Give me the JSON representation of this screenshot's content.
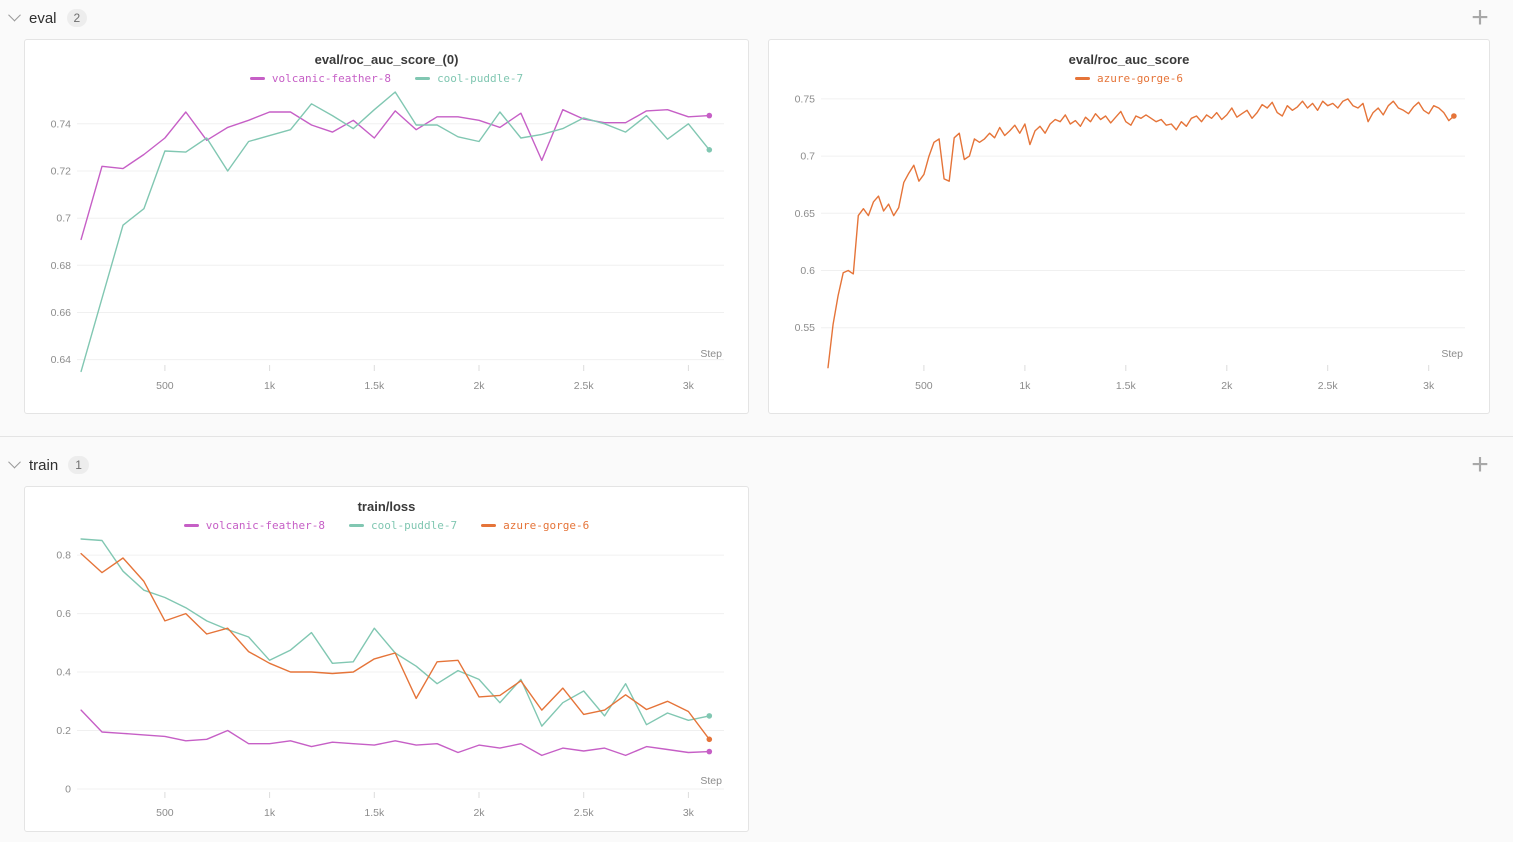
{
  "sections": [
    {
      "label": "eval",
      "count": "2"
    },
    {
      "label": "train",
      "count": "1"
    }
  ],
  "icons": {
    "chevron-down-icon": "v",
    "plus-icon": "+"
  },
  "ui_colors": {
    "background": "#fafafa",
    "card_border": "#e4e4e4",
    "grid_line": "#f0f0f0",
    "tick_text": "#8c8c8c",
    "run_magenta": "#c65fc6",
    "run_teal": "#81c7b2",
    "run_orange": "#e57439"
  },
  "chart_data": [
    {
      "type": "line",
      "title": "eval/roc_auc_score_(0)",
      "xlabel": "Step",
      "ylabel": "",
      "legend_position": "top",
      "grid": "horizontal",
      "xlim": [
        90,
        3170
      ],
      "ylim": [
        0.639,
        0.7535
      ],
      "x_ticks": {
        "values": [
          500,
          1000,
          1500,
          2000,
          2500,
          3000
        ],
        "labels": [
          "500",
          "1k",
          "1.5k",
          "2k",
          "2.5k",
          "3k"
        ]
      },
      "y_ticks": {
        "values": [
          0.64,
          0.66,
          0.68,
          0.7,
          0.72,
          0.74
        ],
        "labels": [
          "0.64",
          "0.66",
          "0.68",
          "0.7",
          "0.72",
          "0.74"
        ]
      },
      "series": [
        {
          "name": "volcanic-feather-8",
          "color": "#c65fc6",
          "x0": 100,
          "dx": 100,
          "end_dot": true,
          "values": [
            0.691,
            0.722,
            0.721,
            0.727,
            0.734,
            0.745,
            0.733,
            0.7385,
            0.7415,
            0.745,
            0.745,
            0.7395,
            0.7365,
            0.7415,
            0.734,
            0.7455,
            0.7375,
            0.743,
            0.743,
            0.7415,
            0.7385,
            0.7445,
            0.7245,
            0.746,
            0.742,
            0.7405,
            0.7405,
            0.7455,
            0.746,
            0.743,
            0.7435
          ]
        },
        {
          "name": "cool-puddle-7",
          "color": "#81c7b2",
          "x0": 100,
          "dx": 100,
          "end_dot": true,
          "values": [
            0.635,
            0.666,
            0.697,
            0.704,
            0.7285,
            0.728,
            0.734,
            0.72,
            0.7325,
            0.735,
            0.7375,
            0.7485,
            0.7435,
            0.738,
            0.746,
            0.7535,
            0.7395,
            0.7395,
            0.7345,
            0.7325,
            0.745,
            0.734,
            0.7355,
            0.738,
            0.7425,
            0.74,
            0.7365,
            0.7435,
            0.7335,
            0.74,
            0.729
          ]
        }
      ]
    },
    {
      "type": "line",
      "title": "eval/roc_auc_score",
      "xlabel": "Step",
      "ylabel": "",
      "legend_position": "top",
      "grid": "horizontal",
      "xlim": [
        0,
        3180
      ],
      "ylim": [
        0.52,
        0.756
      ],
      "x_ticks": {
        "values": [
          500,
          1000,
          1500,
          2000,
          2500,
          3000
        ],
        "labels": [
          "500",
          "1k",
          "1.5k",
          "2k",
          "2.5k",
          "3k"
        ]
      },
      "y_ticks": {
        "values": [
          0.55,
          0.6,
          0.65,
          0.7,
          0.75
        ],
        "labels": [
          "0.55",
          "0.6",
          "0.65",
          "0.7",
          "0.75"
        ]
      },
      "series": [
        {
          "name": "azure-gorge-6",
          "color": "#e57439",
          "x0": 25,
          "dx": 25,
          "end_dot": true,
          "values": [
            0.515,
            0.553,
            0.578,
            0.598,
            0.6,
            0.597,
            0.648,
            0.654,
            0.648,
            0.66,
            0.665,
            0.652,
            0.658,
            0.648,
            0.655,
            0.677,
            0.685,
            0.692,
            0.678,
            0.684,
            0.7,
            0.712,
            0.715,
            0.68,
            0.678,
            0.716,
            0.72,
            0.697,
            0.7,
            0.715,
            0.712,
            0.715,
            0.72,
            0.716,
            0.725,
            0.718,
            0.722,
            0.727,
            0.72,
            0.728,
            0.71,
            0.722,
            0.726,
            0.72,
            0.728,
            0.732,
            0.73,
            0.736,
            0.728,
            0.731,
            0.726,
            0.734,
            0.73,
            0.737,
            0.732,
            0.735,
            0.729,
            0.734,
            0.739,
            0.73,
            0.727,
            0.735,
            0.733,
            0.736,
            0.733,
            0.73,
            0.732,
            0.727,
            0.728,
            0.723,
            0.73,
            0.726,
            0.733,
            0.735,
            0.73,
            0.736,
            0.733,
            0.738,
            0.732,
            0.736,
            0.742,
            0.734,
            0.737,
            0.74,
            0.733,
            0.738,
            0.745,
            0.742,
            0.747,
            0.738,
            0.735,
            0.744,
            0.74,
            0.743,
            0.748,
            0.742,
            0.746,
            0.74,
            0.748,
            0.744,
            0.746,
            0.742,
            0.748,
            0.75,
            0.744,
            0.742,
            0.746,
            0.73,
            0.738,
            0.742,
            0.736,
            0.744,
            0.748,
            0.742,
            0.74,
            0.737,
            0.743,
            0.747,
            0.74,
            0.737,
            0.744,
            0.742,
            0.738,
            0.731,
            0.735
          ]
        }
      ]
    },
    {
      "type": "line",
      "title": "train/loss",
      "xlabel": "Step",
      "ylabel": "",
      "legend_position": "top",
      "grid": "horizontal",
      "xlim": [
        90,
        3170
      ],
      "ylim": [
        0,
        0.855
      ],
      "x_ticks": {
        "values": [
          500,
          1000,
          1500,
          2000,
          2500,
          3000
        ],
        "labels": [
          "500",
          "1k",
          "1.5k",
          "2k",
          "2.5k",
          "3k"
        ]
      },
      "y_ticks": {
        "values": [
          0,
          0.2,
          0.4,
          0.6,
          0.8
        ],
        "labels": [
          "0",
          "0.2",
          "0.4",
          "0.6",
          "0.8"
        ]
      },
      "series": [
        {
          "name": "volcanic-feather-8",
          "color": "#c65fc6",
          "x0": 100,
          "dx": 100,
          "end_dot": true,
          "values": [
            0.27,
            0.195,
            0.19,
            0.185,
            0.18,
            0.165,
            0.17,
            0.2,
            0.155,
            0.155,
            0.165,
            0.145,
            0.16,
            0.155,
            0.15,
            0.165,
            0.15,
            0.155,
            0.125,
            0.15,
            0.14,
            0.155,
            0.115,
            0.14,
            0.13,
            0.14,
            0.115,
            0.145,
            0.135,
            0.125,
            0.128
          ]
        },
        {
          "name": "cool-puddle-7",
          "color": "#81c7b2",
          "x0": 100,
          "dx": 100,
          "end_dot": true,
          "values": [
            0.855,
            0.85,
            0.745,
            0.68,
            0.655,
            0.62,
            0.575,
            0.545,
            0.52,
            0.44,
            0.475,
            0.535,
            0.43,
            0.435,
            0.55,
            0.465,
            0.42,
            0.36,
            0.405,
            0.375,
            0.295,
            0.375,
            0.215,
            0.295,
            0.335,
            0.25,
            0.36,
            0.22,
            0.26,
            0.235,
            0.25
          ]
        },
        {
          "name": "azure-gorge-6",
          "color": "#e57439",
          "x0": 100,
          "dx": 100,
          "end_dot": true,
          "values": [
            0.805,
            0.74,
            0.79,
            0.71,
            0.575,
            0.6,
            0.53,
            0.55,
            0.47,
            0.43,
            0.4,
            0.4,
            0.395,
            0.4,
            0.445,
            0.465,
            0.31,
            0.435,
            0.44,
            0.315,
            0.32,
            0.37,
            0.27,
            0.345,
            0.255,
            0.27,
            0.322,
            0.272,
            0.3,
            0.265,
            0.17
          ]
        }
      ]
    }
  ]
}
